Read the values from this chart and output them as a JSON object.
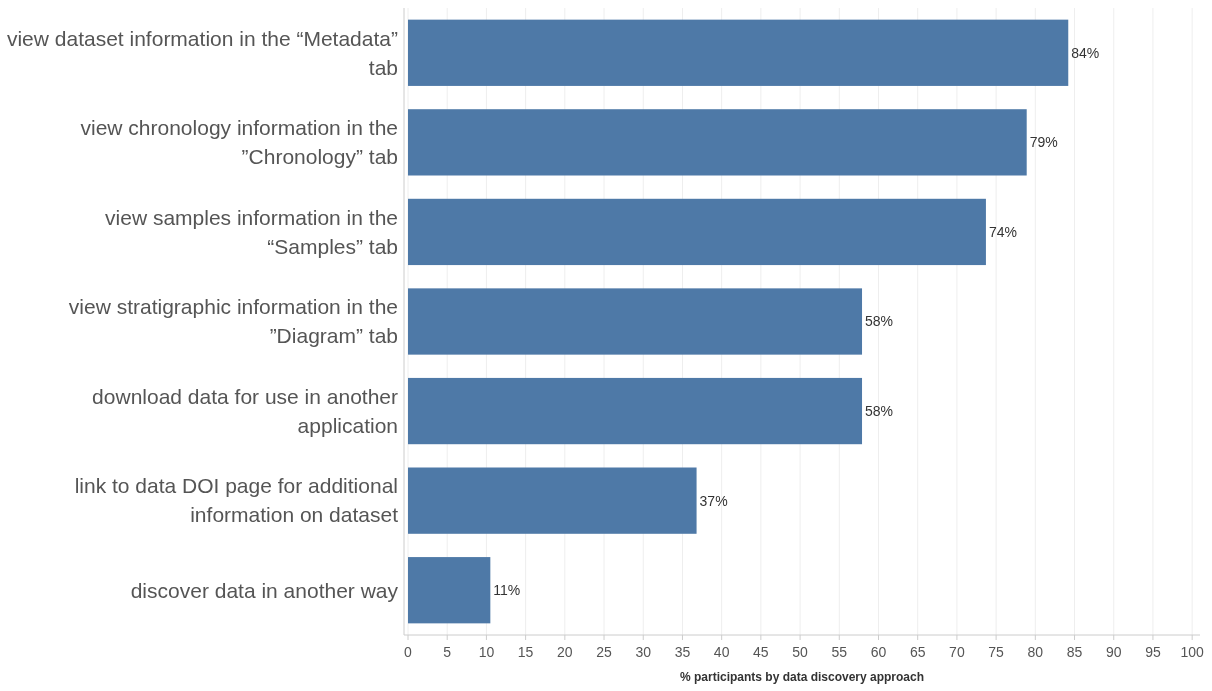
{
  "chart_data": {
    "type": "bar",
    "orientation": "horizontal",
    "xlabel": "% participants by data discovery approach",
    "categories": [
      "view dataset information in the “Metadata” tab",
      "view chronology information in the ”Chronology” tab",
      "view samples information in the “Samples” tab",
      "view stratigraphic information in the ”Diagram” tab",
      "download data for use in another application",
      "link to data DOI page for additional information on dataset",
      "discover data in another way"
    ],
    "values": [
      84.2,
      78.9,
      73.7,
      57.9,
      57.9,
      36.8,
      10.5
    ],
    "value_labels": [
      "84%",
      "79%",
      "74%",
      "58%",
      "58%",
      "37%",
      "11%"
    ],
    "color": "#4e79a7",
    "xlim": [
      0,
      101
    ],
    "xticks": [
      0,
      5,
      10,
      15,
      20,
      25,
      30,
      35,
      40,
      45,
      50,
      55,
      60,
      65,
      70,
      75,
      80,
      85,
      90,
      95,
      100
    ],
    "grid": "x"
  }
}
